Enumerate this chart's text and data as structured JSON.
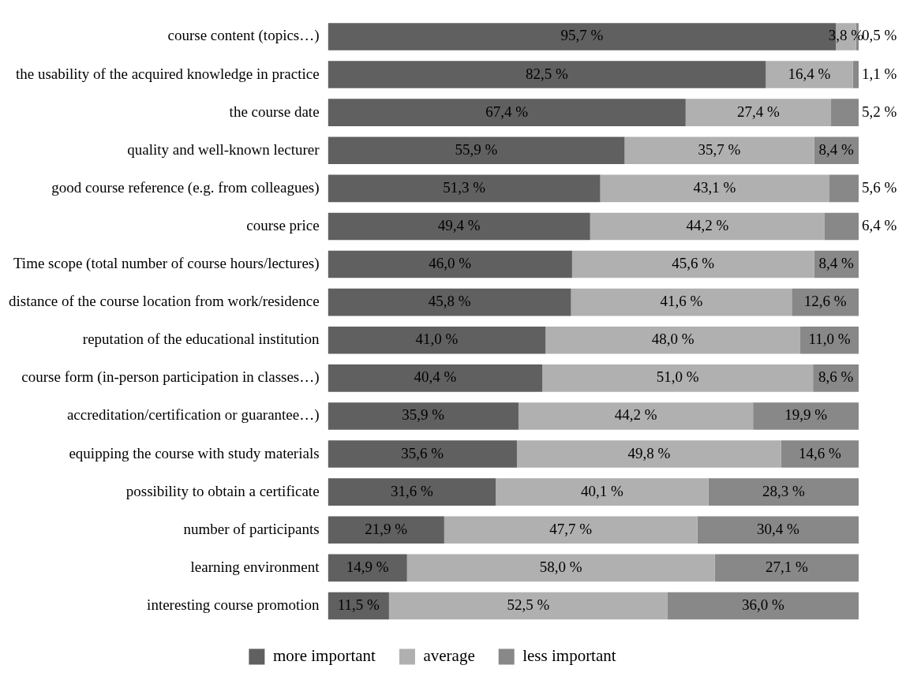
{
  "chart_data": {
    "type": "bar",
    "orientation": "horizontal",
    "stacked": true,
    "legend": "bottom",
    "tick_labels": "y",
    "categories": [
      "course content (topics…)",
      "the usability of the acquired knowledge in practice",
      "the course date",
      "quality and well-known lecturer",
      "good course reference (e.g. from colleagues)",
      "course price",
      "Time scope (total number of course hours/lectures)",
      "distance of the course location from work/residence",
      "reputation of the educational institution",
      "course form (in-person participation in classes…)",
      "accreditation/certification or guarantee…)",
      "equipping the course with study materials",
      "possibility to obtain a certificate",
      "number of participants",
      "learning environment",
      "interesting course promotion"
    ],
    "series": [
      {
        "name": "more important",
        "color": "#606060",
        "values": [
          95.7,
          82.5,
          67.4,
          55.9,
          51.3,
          49.4,
          46.0,
          45.8,
          41.0,
          40.4,
          35.9,
          35.6,
          31.6,
          21.9,
          14.9,
          11.5
        ],
        "value_labels": [
          "95,7 %",
          "82,5 %",
          "67,4 %",
          "55,9 %",
          "51,3 %",
          "49,4 %",
          "46,0 %",
          "45,8 %",
          "41,0 %",
          "40,4 %",
          "35,9 %",
          "35,6 %",
          "31,6 %",
          "21,9 %",
          "14,9 %",
          "11,5 %"
        ]
      },
      {
        "name": "average",
        "color": "#b0b0b0",
        "values": [
          3.8,
          16.4,
          27.4,
          35.7,
          43.1,
          44.2,
          45.6,
          41.6,
          48.0,
          51.0,
          44.2,
          49.8,
          40.1,
          47.7,
          58.0,
          52.5
        ],
        "value_labels": [
          "3,8 %",
          "16,4 %",
          "27,4 %",
          "35,7 %",
          "43,1 %",
          "44,2 %",
          "45,6 %",
          "41,6 %",
          "48,0 %",
          "51,0 %",
          "44,2 %",
          "49,8 %",
          "40,1 %",
          "47,7 %",
          "58,0 %",
          "52,5 %"
        ]
      },
      {
        "name": "less important",
        "color": "#888888",
        "values": [
          0.5,
          1.1,
          5.2,
          8.4,
          5.6,
          6.4,
          8.4,
          12.6,
          11.0,
          8.6,
          19.9,
          14.6,
          28.3,
          30.4,
          27.1,
          36.0
        ],
        "value_labels": [
          "0,5 %",
          "1,1 %",
          "5,2 %",
          "8,4 %",
          "5,6 %",
          "6,4 %",
          "8,4 %",
          "12,6 %",
          "11,0 %",
          "8,6 %",
          "19,9 %",
          "14,6 %",
          "28,3 %",
          "30,4 %",
          "27,1 %",
          "36,0 %"
        ]
      }
    ]
  }
}
